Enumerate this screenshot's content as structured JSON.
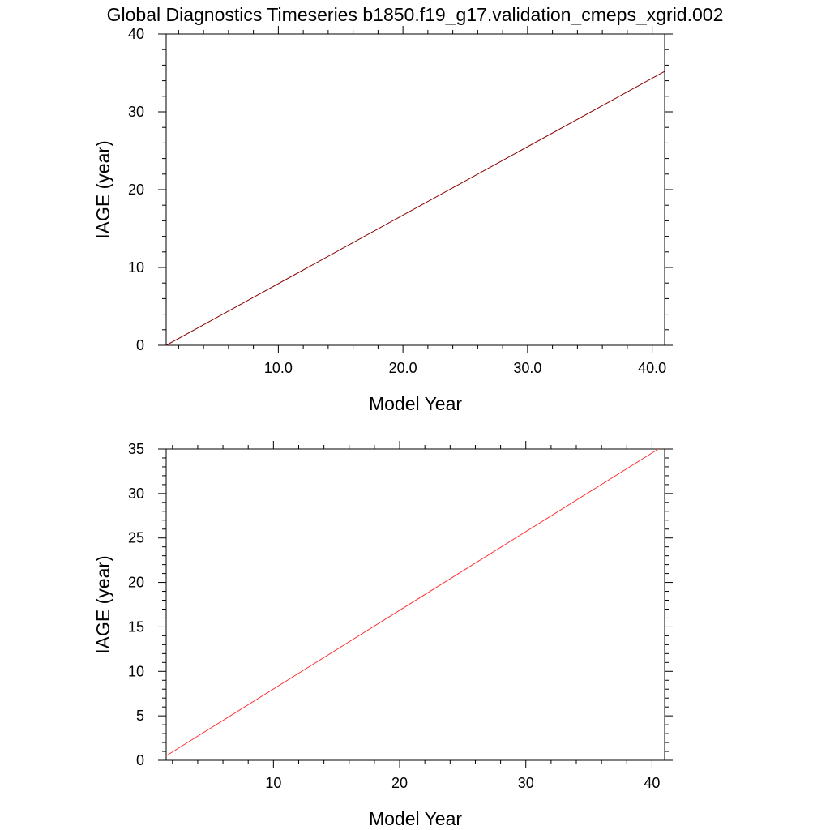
{
  "page_title": "Global Diagnostics Timeseries b1850.f19_g17.validation_cmeps_xgrid.002",
  "chart_data": [
    {
      "type": "line",
      "xlabel": "Model Year",
      "ylabel": "IAGE (year)",
      "xlim": [
        1,
        41
      ],
      "ylim": [
        0,
        40
      ],
      "x_ticks": [
        10,
        20,
        30,
        40
      ],
      "x_tick_labels": [
        "10.0",
        "20.0",
        "30.0",
        "40.0"
      ],
      "y_ticks": [
        0,
        10,
        20,
        30,
        40
      ],
      "y_tick_labels": [
        "0",
        "10",
        "20",
        "30",
        "40"
      ],
      "series": [
        {
          "color": "#8b0000",
          "x": [
            1,
            41
          ],
          "y": [
            0,
            35.2
          ]
        }
      ]
    },
    {
      "type": "line",
      "xlabel": "Model Year",
      "ylabel": "IAGE (year)",
      "xlim": [
        1.5,
        41
      ],
      "ylim": [
        0,
        35
      ],
      "x_ticks": [
        10,
        20,
        30,
        40
      ],
      "x_tick_labels": [
        "10",
        "20",
        "30",
        "40"
      ],
      "y_ticks": [
        0,
        5,
        10,
        15,
        20,
        25,
        30,
        35
      ],
      "y_tick_labels": [
        "0",
        "5",
        "10",
        "15",
        "20",
        "25",
        "30",
        "35"
      ],
      "series": [
        {
          "color": "#ff3030",
          "x": [
            1.5,
            40.5
          ],
          "y": [
            0.5,
            35
          ]
        }
      ]
    }
  ]
}
